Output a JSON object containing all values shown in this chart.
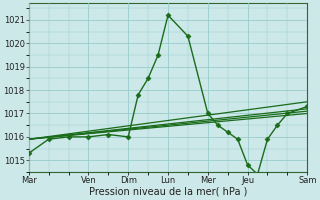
{
  "background_color": "#cce8e8",
  "grid_color": "#99cccc",
  "line_color": "#1a6b1a",
  "xlabel": "Pression niveau de la mer( hPa )",
  "ylim": [
    1014.5,
    1021.7
  ],
  "yticks": [
    1015,
    1016,
    1017,
    1018,
    1019,
    1020,
    1021
  ],
  "x_day_labels": [
    "Mar",
    "Ven",
    "Dim",
    "Lun",
    "Mer",
    "Jeu",
    "Sam"
  ],
  "x_day_positions": [
    0,
    3,
    5,
    7,
    9,
    11,
    14
  ],
  "xlim": [
    0,
    14
  ],
  "series": [
    {
      "x": [
        0,
        1,
        2,
        3,
        4,
        5,
        5.5,
        6,
        6.5,
        7,
        8,
        9,
        9.5,
        10,
        10.5,
        11,
        11.5,
        12,
        12.5,
        13,
        14
      ],
      "y": [
        1015.3,
        1015.9,
        1016.0,
        1016.0,
        1016.1,
        1016.0,
        1017.8,
        1018.5,
        1019.5,
        1021.2,
        1020.3,
        1017.0,
        1016.5,
        1016.2,
        1015.9,
        1014.8,
        1014.4,
        1015.9,
        1016.5,
        1017.0,
        1017.3
      ],
      "marker": "D",
      "ms": 2.5,
      "lw": 1.0
    },
    {
      "x": [
        0,
        14
      ],
      "y": [
        1015.9,
        1017.5
      ],
      "marker": null,
      "ms": 0,
      "lw": 0.9
    },
    {
      "x": [
        0,
        14
      ],
      "y": [
        1015.9,
        1017.2
      ],
      "marker": null,
      "ms": 0,
      "lw": 0.9
    },
    {
      "x": [
        0,
        14
      ],
      "y": [
        1015.9,
        1017.1
      ],
      "marker": null,
      "ms": 0,
      "lw": 0.9
    },
    {
      "x": [
        0,
        14
      ],
      "y": [
        1015.9,
        1017.0
      ],
      "marker": null,
      "ms": 0,
      "lw": 0.9
    }
  ],
  "figsize": [
    3.2,
    2.0
  ],
  "dpi": 100,
  "tick_labelsize": 6,
  "xlabel_fontsize": 7
}
